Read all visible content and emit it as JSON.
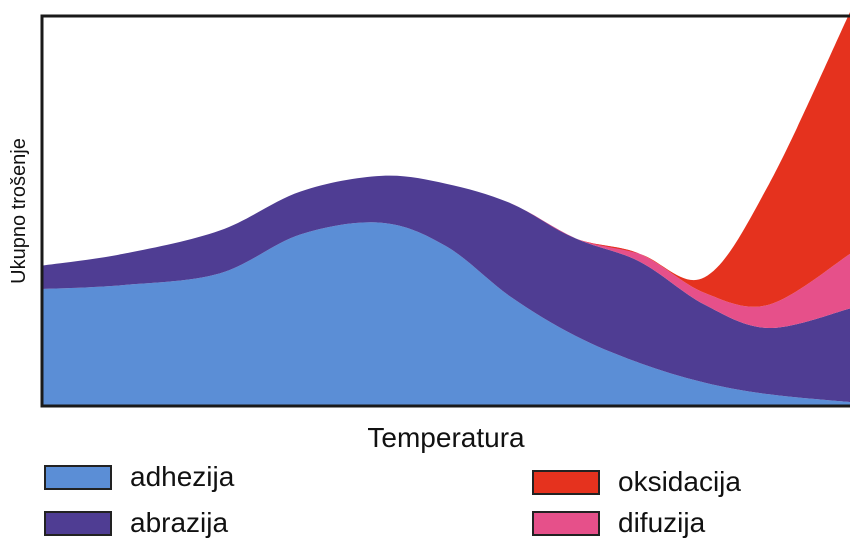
{
  "chart_data": {
    "type": "area",
    "title": "",
    "xlabel": "Temperatura",
    "ylabel": "Ukupno trošenje",
    "xlim": [
      0,
      100
    ],
    "ylim": [
      0,
      100
    ],
    "grid": false,
    "legend_position": "bottom",
    "stacked": true,
    "series": [
      {
        "name": "adhezija",
        "color": "#5b8ed6",
        "x": [
          0,
          10,
          22,
          32,
          42,
          50,
          58,
          66,
          74,
          82,
          90,
          100
        ],
        "y": [
          30,
          31,
          34,
          44,
          47,
          41,
          28,
          18,
          11,
          6,
          3,
          1
        ]
      },
      {
        "name": "abrazija",
        "color": "#4f3d93",
        "x": [
          0,
          10,
          22,
          32,
          42,
          50,
          58,
          66,
          74,
          82,
          90,
          100
        ],
        "y": [
          6,
          8,
          11,
          11,
          12,
          16,
          24,
          25,
          26,
          20,
          17,
          24
        ]
      },
      {
        "name": "difuzija",
        "color": "#e6508a",
        "x": [
          0,
          10,
          22,
          32,
          42,
          50,
          58,
          66,
          74,
          82,
          90,
          100
        ],
        "y": [
          0,
          0,
          0,
          0,
          0,
          0,
          0,
          0,
          2,
          3,
          6,
          14
        ]
      },
      {
        "name": "oksidacija",
        "color": "#e5321e",
        "x": [
          0,
          10,
          22,
          32,
          42,
          50,
          58,
          66,
          74,
          82,
          90,
          100
        ],
        "y": [
          0,
          0,
          0,
          0,
          0,
          0,
          0,
          0,
          0,
          4,
          31,
          62
        ]
      }
    ]
  },
  "legend": {
    "items": [
      {
        "label": "adhezija",
        "color": "#5b8ed6"
      },
      {
        "label": "abrazija",
        "color": "#4f3d93"
      },
      {
        "label": "oksidacija",
        "color": "#e5321e"
      },
      {
        "label": "difuzija",
        "color": "#e6508a"
      }
    ]
  }
}
